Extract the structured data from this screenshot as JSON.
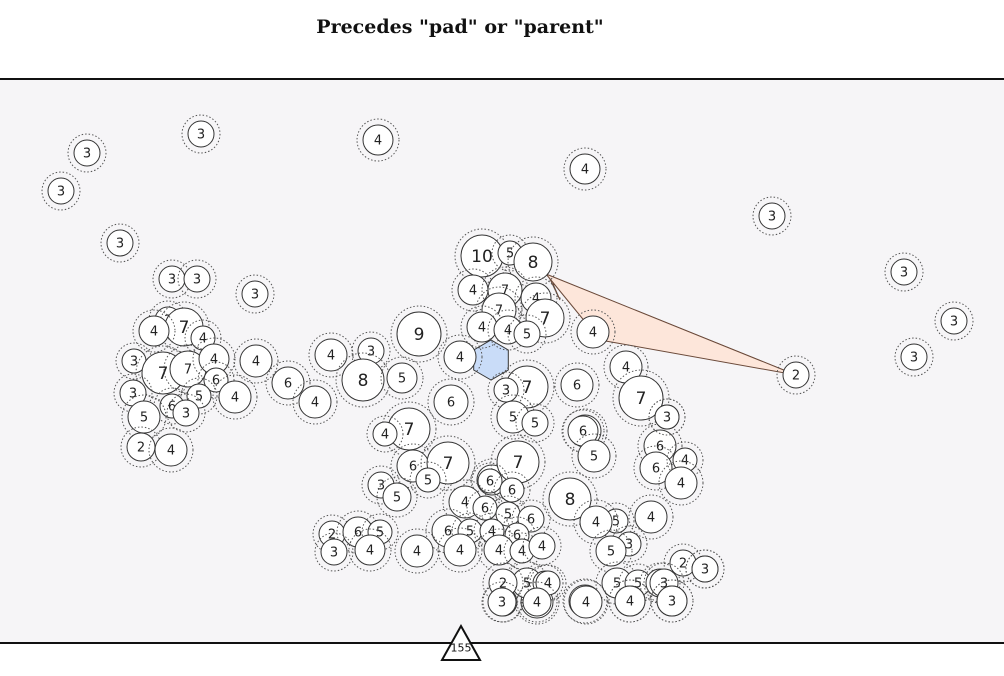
{
  "title": "Precedes \"pad\" or \"parent\"",
  "counter": "155",
  "colors": {
    "background": "#f6f5f7",
    "node_fill": "#ffffff",
    "selected_hexagon": "#c9dcf8",
    "link_wedge": "#fde6da"
  },
  "nodes": [
    {
      "label": "3"
    },
    {
      "label": "3"
    },
    {
      "label": "4"
    },
    {
      "label": "4"
    },
    {
      "label": "3"
    },
    {
      "label": "3"
    },
    {
      "label": "3"
    },
    {
      "label": "3"
    },
    {
      "label": "3"
    },
    {
      "label": "3"
    },
    {
      "label": "3"
    },
    {
      "label": "3"
    },
    {
      "label": "3"
    },
    {
      "label": "10"
    },
    {
      "label": "5"
    },
    {
      "label": "8"
    },
    {
      "label": "4"
    },
    {
      "label": "7"
    },
    {
      "label": "4"
    },
    {
      "label": "7"
    },
    {
      "label": "7"
    },
    {
      "label": "4"
    },
    {
      "label": "4"
    },
    {
      "label": "5"
    },
    {
      "label": "4"
    },
    {
      "label": "3"
    },
    {
      "label": "7"
    },
    {
      "label": "4"
    },
    {
      "label": "9"
    },
    {
      "label": "2"
    },
    {
      "label": "4"
    },
    {
      "label": "4"
    },
    {
      "label": "3"
    },
    {
      "label": "7"
    },
    {
      "label": "7"
    },
    {
      "label": "4"
    },
    {
      "label": "3"
    },
    {
      "label": "6"
    },
    {
      "label": "4"
    },
    {
      "label": "6"
    },
    {
      "label": "4"
    },
    {
      "label": "8"
    },
    {
      "label": "5"
    },
    {
      "label": "3"
    },
    {
      "label": "7"
    },
    {
      "label": "6"
    },
    {
      "label": "4"
    },
    {
      "label": "7"
    },
    {
      "label": "4"
    },
    {
      "label": "3"
    },
    {
      "label": "5"
    },
    {
      "label": "6"
    },
    {
      "label": "3"
    },
    {
      "label": "5"
    },
    {
      "label": "2"
    },
    {
      "label": "4"
    },
    {
      "label": "4"
    },
    {
      "label": "6"
    },
    {
      "label": "3"
    },
    {
      "label": "7"
    },
    {
      "label": "6"
    },
    {
      "label": "5"
    },
    {
      "label": "6"
    },
    {
      "label": "6"
    },
    {
      "label": "5"
    },
    {
      "label": "6"
    },
    {
      "label": "4"
    },
    {
      "label": "7"
    },
    {
      "label": "6"
    },
    {
      "label": "5"
    },
    {
      "label": "3"
    },
    {
      "label": "7"
    },
    {
      "label": "5"
    },
    {
      "label": "6"
    },
    {
      "label": "4"
    },
    {
      "label": "8"
    },
    {
      "label": "6"
    },
    {
      "label": "6"
    },
    {
      "label": "4"
    },
    {
      "label": "3"
    },
    {
      "label": "5"
    },
    {
      "label": "6"
    },
    {
      "label": "5"
    },
    {
      "label": "6"
    },
    {
      "label": "5"
    },
    {
      "label": "4"
    },
    {
      "label": "6"
    },
    {
      "label": "6"
    },
    {
      "label": "5"
    },
    {
      "label": "4"
    },
    {
      "label": "4"
    },
    {
      "label": "3"
    },
    {
      "label": "2"
    },
    {
      "label": "6"
    },
    {
      "label": "5"
    },
    {
      "label": "3"
    },
    {
      "label": "4"
    },
    {
      "label": "4"
    },
    {
      "label": "4"
    },
    {
      "label": "4"
    },
    {
      "label": "4"
    },
    {
      "label": "4"
    },
    {
      "label": "4"
    },
    {
      "label": "4"
    },
    {
      "label": "4"
    },
    {
      "label": "5"
    },
    {
      "label": "3"
    },
    {
      "label": "5"
    },
    {
      "label": "2"
    },
    {
      "label": "5"
    },
    {
      "label": "6"
    },
    {
      "label": "5"
    },
    {
      "label": "6"
    },
    {
      "label": "4"
    },
    {
      "label": "2"
    },
    {
      "label": "3"
    },
    {
      "label": "3"
    },
    {
      "label": "4"
    },
    {
      "label": "4"
    },
    {
      "label": "4"
    },
    {
      "label": "4"
    },
    {
      "label": "4"
    },
    {
      "label": "3"
    },
    {
      "label": "3"
    },
    {
      "label": "3"
    }
  ]
}
